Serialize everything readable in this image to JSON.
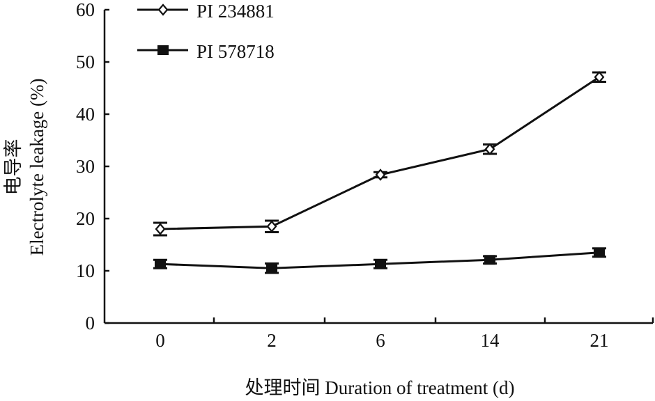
{
  "chart_data": {
    "type": "line",
    "title": "",
    "xlabel": "处理时间 Duration of treatment (d)",
    "ylabel_cn": "电导率",
    "ylabel": "Electrolyte leakage (%)",
    "categories": [
      "0",
      "2",
      "6",
      "14",
      "21"
    ],
    "ylim": [
      0,
      60
    ],
    "yticks": [
      "0",
      "10",
      "20",
      "30",
      "40",
      "50",
      "60"
    ],
    "grid": false,
    "legend_position": "top-left",
    "series": [
      {
        "name": "PI 234881",
        "marker": "open-diamond",
        "values": [
          18.0,
          18.5,
          28.4,
          33.3,
          47.1
        ],
        "errors": [
          1.2,
          1.1,
          0.5,
          0.9,
          0.9
        ]
      },
      {
        "name": "PI 578718",
        "marker": "filled-square",
        "values": [
          11.3,
          10.5,
          11.3,
          12.1,
          13.5
        ],
        "errors": [
          0.8,
          0.9,
          0.8,
          0.7,
          0.8
        ]
      }
    ],
    "colors": {
      "line": "#111111"
    }
  }
}
